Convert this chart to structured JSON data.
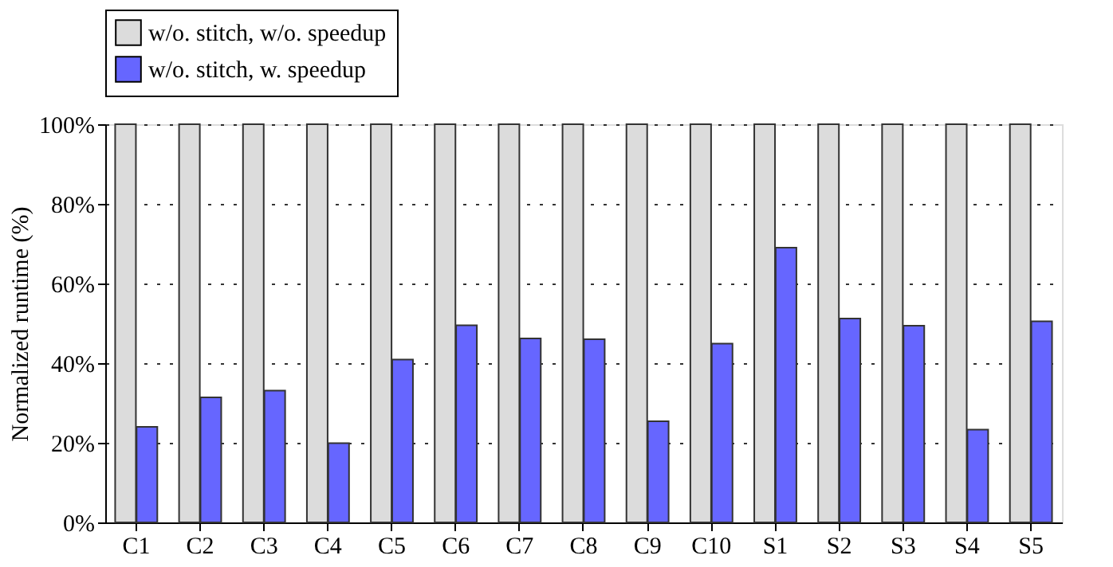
{
  "chart_data": {
    "type": "bar",
    "ylabel": "Normalized runtime (%)",
    "categories": [
      "C1",
      "C2",
      "C3",
      "C4",
      "C5",
      "C6",
      "C7",
      "C8",
      "C9",
      "C10",
      "S1",
      "S2",
      "S3",
      "S4",
      "S5"
    ],
    "series": [
      {
        "name": "w/o. stitch, w/o. speedup",
        "color": "#dcdcdc",
        "values": [
          100,
          100,
          100,
          100,
          100,
          100,
          100,
          100,
          100,
          100,
          100,
          100,
          100,
          100,
          100
        ]
      },
      {
        "name": "w/o. stitch, w. speedup",
        "color": "#6666ff",
        "values": [
          24.0,
          31.4,
          33.1,
          19.9,
          40.9,
          49.5,
          46.2,
          46.0,
          25.4,
          44.9,
          69.0,
          51.2,
          49.4,
          23.3,
          50.5
        ]
      }
    ],
    "ylim": [
      0,
      100
    ],
    "yticks": [
      {
        "value": 0,
        "label": "0%"
      },
      {
        "value": 20,
        "label": "20%"
      },
      {
        "value": 40,
        "label": "40%"
      },
      {
        "value": 60,
        "label": "60%"
      },
      {
        "value": 80,
        "label": "80%"
      },
      {
        "value": 100,
        "label": "100%"
      }
    ],
    "grid": "y",
    "legend": "top"
  }
}
